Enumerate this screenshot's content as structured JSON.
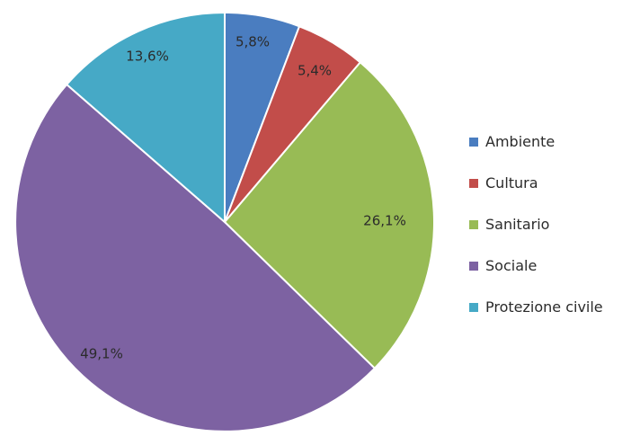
{
  "chart_data": {
    "type": "pie",
    "title": "",
    "start_angle_deg": 0,
    "direction": "clockwise",
    "slices": [
      {
        "name": "Ambiente",
        "value": 5.8,
        "label": "5,8%",
        "color": "#4a7dc0"
      },
      {
        "name": "Cultura",
        "value": 5.4,
        "label": "5,4%",
        "color": "#c24d4a"
      },
      {
        "name": "Sanitario",
        "value": 26.1,
        "label": "26,1%",
        "color": "#98bb55"
      },
      {
        "name": "Sociale",
        "value": 49.1,
        "label": "49,1%",
        "color": "#7d62a2"
      },
      {
        "name": "Protezione civile",
        "value": 13.6,
        "label": "13,6%",
        "color": "#46a9c6"
      }
    ],
    "legend": {
      "position": "right",
      "entries": [
        "Ambiente",
        "Cultura",
        "Sanitario",
        "Sociale",
        "Protezione civile"
      ]
    }
  }
}
